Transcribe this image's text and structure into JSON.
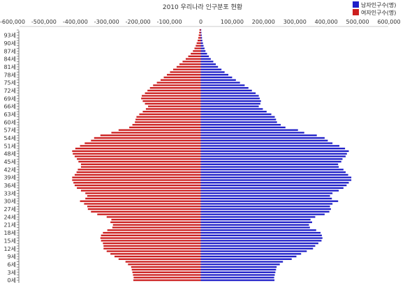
{
  "chart_data": {
    "type": "bar",
    "orientation": "horizontal",
    "title": "2010 우리나라 인구분포 현황",
    "xlim": [
      -600000,
      600000
    ],
    "x_ticks": [
      -600000,
      -500000,
      -400000,
      -300000,
      -200000,
      -100000,
      0,
      100000,
      200000,
      300000,
      400000,
      500000,
      600000
    ],
    "x_tick_labels": [
      "-600,000",
      "-500,000",
      "-400,000",
      "-300,000",
      "-200,000",
      "-100,000",
      "0",
      "100,000",
      "200,000",
      "300,000",
      "400,000",
      "500,000",
      "600,000"
    ],
    "y_tick_labels": [
      "0세",
      "3세",
      "6세",
      "9세",
      "12세",
      "15세",
      "18세",
      "21세",
      "24세",
      "27세",
      "30세",
      "33세",
      "36세",
      "39세",
      "42세",
      "45세",
      "48세",
      "51세",
      "54세",
      "57세",
      "60세",
      "63세",
      "66세",
      "69세",
      "72세",
      "75세",
      "78세",
      "81세",
      "84세",
      "87세",
      "90세",
      "93세"
    ],
    "legend_position": "top-right",
    "grid": false,
    "ages": [
      0,
      1,
      2,
      3,
      4,
      5,
      6,
      7,
      8,
      9,
      10,
      11,
      12,
      13,
      14,
      15,
      16,
      17,
      18,
      19,
      20,
      21,
      22,
      23,
      24,
      25,
      26,
      27,
      28,
      29,
      30,
      31,
      32,
      33,
      34,
      35,
      36,
      37,
      38,
      39,
      40,
      41,
      42,
      43,
      44,
      45,
      46,
      47,
      48,
      49,
      50,
      51,
      52,
      53,
      54,
      55,
      56,
      57,
      58,
      59,
      60,
      61,
      62,
      63,
      64,
      65,
      66,
      67,
      68,
      69,
      70,
      71,
      72,
      73,
      74,
      75,
      76,
      77,
      78,
      79,
      80,
      81,
      82,
      83,
      84,
      85,
      86,
      87,
      88,
      89,
      90,
      91,
      92,
      93,
      94,
      95
    ],
    "series": [
      {
        "name": "남자인구수(명)",
        "color": "#1f1fc8",
        "values": [
          235000,
          234000,
          236000,
          238000,
          240000,
          242000,
          252000,
          262000,
          290000,
          305000,
          320000,
          338000,
          358000,
          365000,
          375000,
          385000,
          388000,
          386000,
          382000,
          368000,
          348000,
          345000,
          355000,
          350000,
          365000,
          395000,
          410000,
          415000,
          412000,
          420000,
          438000,
          418000,
          412000,
          420000,
          440000,
          455000,
          465000,
          472000,
          480000,
          480000,
          470000,
          462000,
          455000,
          440000,
          438000,
          448000,
          452000,
          462000,
          466000,
          472000,
          460000,
          442000,
          420000,
          405000,
          395000,
          370000,
          330000,
          310000,
          270000,
          255000,
          243000,
          240000,
          236000,
          225000,
          210000,
          198000,
          185000,
          190000,
          192000,
          188000,
          185000,
          175000,
          163000,
          152000,
          140000,
          125000,
          112000,
          100000,
          88000,
          76000,
          66000,
          55000,
          48000,
          40000,
          32000,
          26000,
          20000,
          15000,
          12000,
          9000,
          7000,
          5000,
          4000,
          3000,
          2000,
          1500
        ]
      },
      {
        "name": "여자인구수(명)",
        "color": "#cc1f1f",
        "values": [
          -215000,
          -214000,
          -216000,
          -218000,
          -220000,
          -222000,
          -232000,
          -240000,
          -262000,
          -275000,
          -288000,
          -300000,
          -310000,
          -310000,
          -312000,
          -318000,
          -320000,
          -318000,
          -312000,
          -298000,
          -282000,
          -280000,
          -288000,
          -285000,
          -300000,
          -330000,
          -350000,
          -360000,
          -362000,
          -372000,
          -385000,
          -368000,
          -362000,
          -368000,
          -382000,
          -395000,
          -402000,
          -406000,
          -410000,
          -410000,
          -402000,
          -396000,
          -392000,
          -382000,
          -382000,
          -390000,
          -395000,
          -402000,
          -408000,
          -410000,
          -400000,
          -385000,
          -370000,
          -350000,
          -340000,
          -320000,
          -285000,
          -262000,
          -228000,
          -218000,
          -210000,
          -208000,
          -205000,
          -196000,
          -185000,
          -175000,
          -168000,
          -178000,
          -185000,
          -190000,
          -188000,
          -178000,
          -170000,
          -162000,
          -152000,
          -140000,
          -128000,
          -118000,
          -108000,
          -98000,
          -88000,
          -77000,
          -68000,
          -58000,
          -48000,
          -40000,
          -32000,
          -25000,
          -20000,
          -16000,
          -13000,
          -10000,
          -8000,
          -6500,
          -5000,
          -4000
        ]
      }
    ]
  }
}
